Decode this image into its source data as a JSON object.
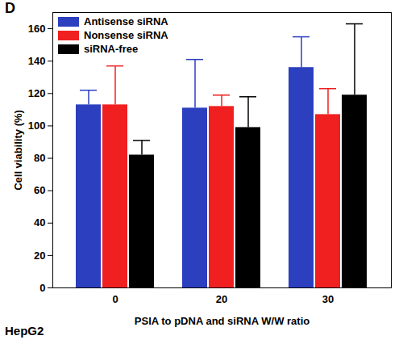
{
  "chart_data": {
    "type": "bar",
    "annotations": [
      "D",
      "HepG2"
    ],
    "x_label": "PSIA to pDNA and siRNA W/W ratio",
    "y_label": "Cell viability (%)",
    "categories": [
      "0",
      "20",
      "30"
    ],
    "series": [
      {
        "name": "Antisense siRNA",
        "color": "#2b3fbf",
        "values": [
          113,
          111,
          136
        ],
        "errors": [
          9,
          30,
          19
        ]
      },
      {
        "name": "Nonsense siRNA",
        "color": "#f02020",
        "values": [
          113,
          112,
          107
        ],
        "errors": [
          24,
          7,
          16
        ]
      },
      {
        "name": "siRNA-free",
        "color": "#000000",
        "values": [
          82,
          99,
          119
        ],
        "errors": [
          9,
          19,
          44
        ]
      }
    ],
    "ylim": [
      0,
      170
    ],
    "yticks": [
      0,
      20,
      40,
      60,
      80,
      100,
      120,
      140,
      160
    ],
    "legend": "top-left"
  }
}
